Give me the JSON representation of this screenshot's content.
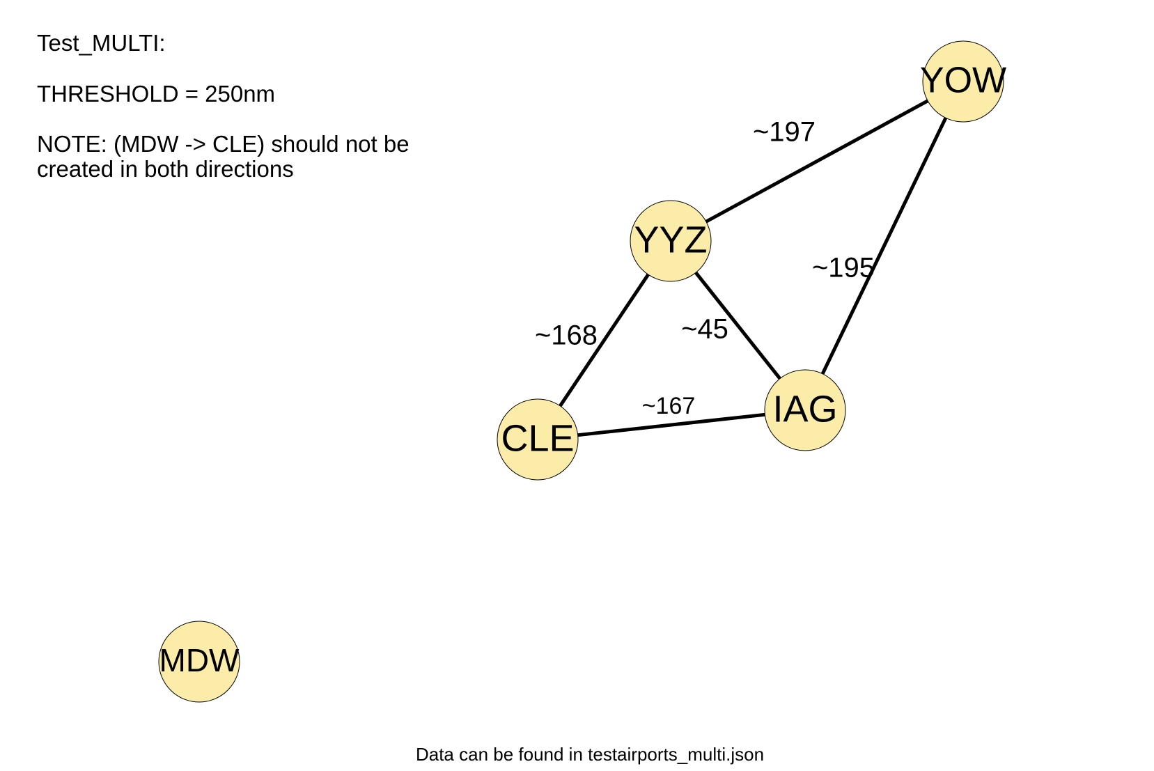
{
  "notes": {
    "title": "Test_MULTI:",
    "threshold": "THRESHOLD = 250nm",
    "note_line1": "NOTE: (MDW -> CLE) should not be",
    "note_line2": "created in both directions"
  },
  "footer": {
    "text": "Data can be found in testairports_multi.json"
  },
  "graph": {
    "node_fill": "#fcecaa",
    "edge_color": "#000000",
    "nodes": [
      {
        "id": "YOW",
        "label": "YOW"
      },
      {
        "id": "YYZ",
        "label": "YYZ"
      },
      {
        "id": "IAG",
        "label": "IAG"
      },
      {
        "id": "CLE",
        "label": "CLE"
      },
      {
        "id": "MDW",
        "label": "MDW"
      }
    ],
    "edges": [
      {
        "source": "YYZ",
        "target": "YOW",
        "label": "~197"
      },
      {
        "source": "IAG",
        "target": "YOW",
        "label": "~195"
      },
      {
        "source": "YYZ",
        "target": "CLE",
        "label": "~168"
      },
      {
        "source": "YYZ",
        "target": "IAG",
        "label": "~45"
      },
      {
        "source": "CLE",
        "target": "IAG",
        "label": "~167"
      }
    ]
  }
}
